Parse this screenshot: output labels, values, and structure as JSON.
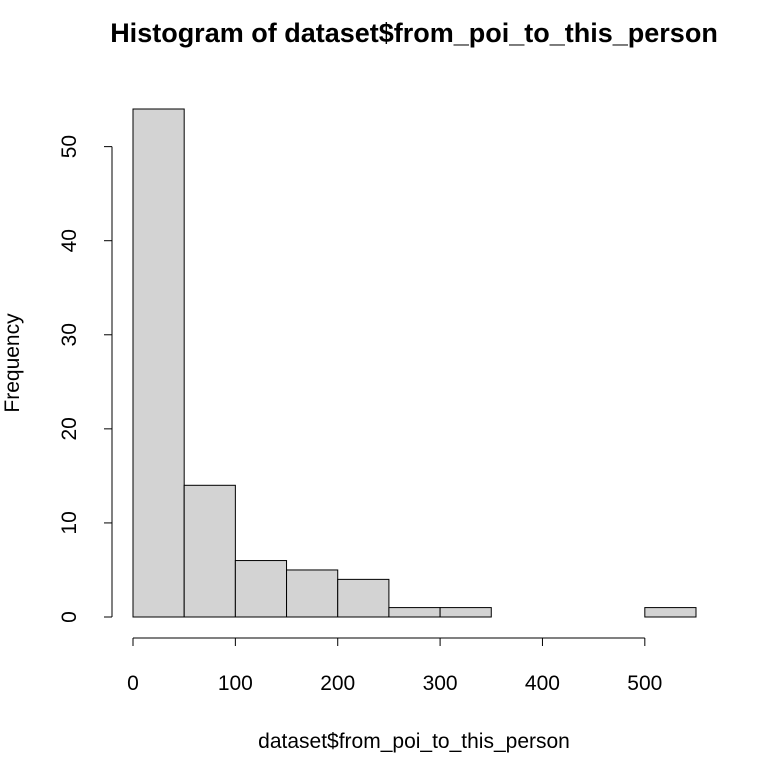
{
  "chart_data": {
    "type": "bar",
    "title": "Histogram of dataset$from_poi_to_this_person",
    "xlabel": "dataset$from_poi_to_this_person",
    "ylabel": "Frequency",
    "bins": [
      {
        "start": 0,
        "end": 50,
        "count": 54
      },
      {
        "start": 50,
        "end": 100,
        "count": 14
      },
      {
        "start": 100,
        "end": 150,
        "count": 6
      },
      {
        "start": 150,
        "end": 200,
        "count": 5
      },
      {
        "start": 200,
        "end": 250,
        "count": 4
      },
      {
        "start": 250,
        "end": 300,
        "count": 1
      },
      {
        "start": 300,
        "end": 350,
        "count": 1
      },
      {
        "start": 350,
        "end": 400,
        "count": 0
      },
      {
        "start": 400,
        "end": 450,
        "count": 0
      },
      {
        "start": 450,
        "end": 500,
        "count": 0
      },
      {
        "start": 500,
        "end": 550,
        "count": 1
      }
    ],
    "xticks": [
      0,
      100,
      200,
      300,
      400,
      500
    ],
    "yticks": [
      0,
      10,
      20,
      30,
      40,
      50
    ],
    "xlim": [
      0,
      550
    ],
    "ylim": [
      0,
      54
    ],
    "bar_color": "#d3d3d3",
    "edge_color": "#000000",
    "grid": false,
    "legend": "none"
  }
}
